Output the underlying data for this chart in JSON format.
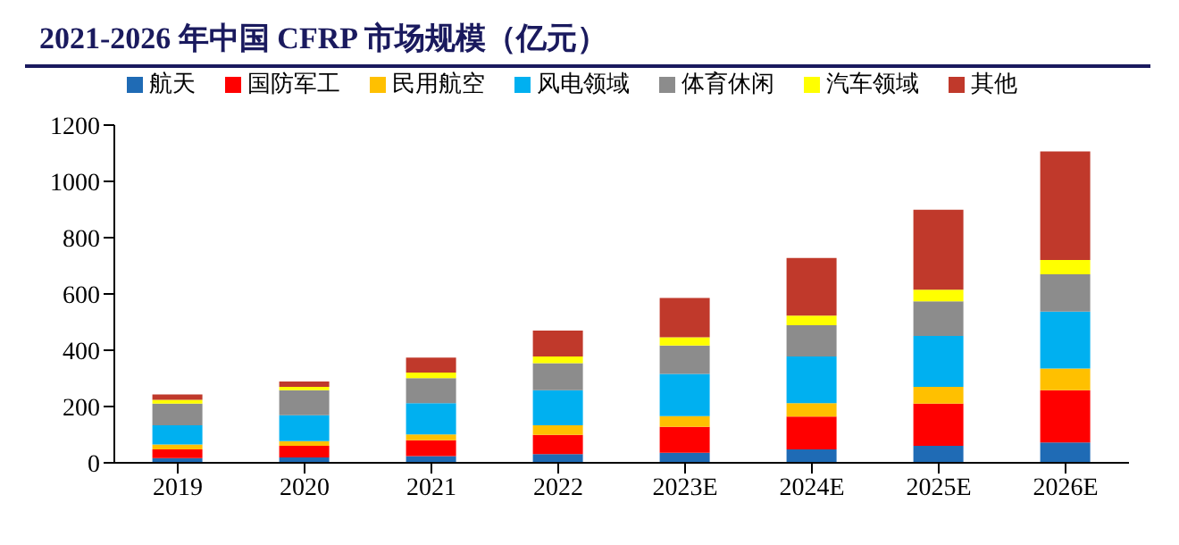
{
  "chart_data": {
    "type": "bar",
    "title": "2021-2026 年中国 CFRP 市场规模（亿元）",
    "categories": [
      "2019",
      "2020",
      "2021",
      "2022",
      "2023E",
      "2024E",
      "2025E",
      "2026E"
    ],
    "stacked": true,
    "series": [
      {
        "name": "航天",
        "color": "#1f6bb5",
        "values": [
          17,
          19,
          24,
          31,
          36,
          48,
          60,
          72
        ]
      },
      {
        "name": "国防军工",
        "color": "#ff0000",
        "values": [
          31,
          41,
          56,
          68,
          92,
          116,
          150,
          186
        ]
      },
      {
        "name": "民用航空",
        "color": "#ffc000",
        "values": [
          17,
          17,
          21,
          34,
          38,
          48,
          60,
          77
        ]
      },
      {
        "name": "风电领域",
        "color": "#00b0f0",
        "values": [
          68,
          92,
          111,
          125,
          150,
          166,
          181,
          202
        ]
      },
      {
        "name": "体育休闲",
        "color": "#8c8c8c",
        "values": [
          77,
          89,
          89,
          96,
          101,
          111,
          123,
          133
        ]
      },
      {
        "name": "汽车领域",
        "color": "#ffff00",
        "values": [
          14,
          12,
          20,
          24,
          29,
          34,
          41,
          51
        ]
      },
      {
        "name": "其他",
        "color": "#c0392b",
        "values": [
          19,
          19,
          53,
          92,
          140,
          205,
          284,
          385
        ]
      }
    ],
    "ylim": [
      0,
      1200
    ],
    "yticks": [
      0,
      200,
      400,
      600,
      800,
      1000,
      1200
    ],
    "grid": false,
    "legend": "top"
  }
}
